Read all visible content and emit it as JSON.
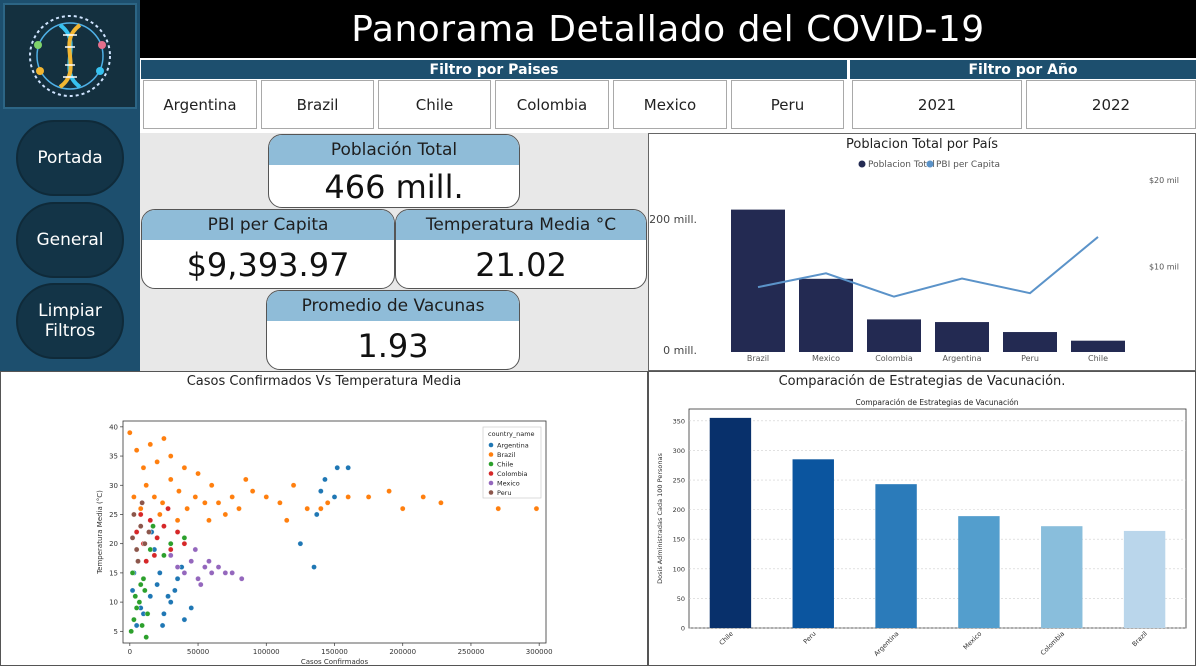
{
  "header": {
    "title": "Panorama Detallado del COVID-19"
  },
  "sidebar": {
    "buttons": [
      "Portada",
      "General",
      "Limpiar Filtros"
    ]
  },
  "filters": {
    "countries_label": "Filtro por Paises",
    "countries": [
      "Argentina",
      "Brazil",
      "Chile",
      "Colombia",
      "Mexico",
      "Peru"
    ],
    "years_label": "Filtro por Año",
    "years": [
      "2021",
      "2022"
    ]
  },
  "kpis": {
    "poblacion": {
      "label": "Población Total",
      "value": "466 mill."
    },
    "pbi": {
      "label": "PBI per Capita",
      "value": "$9,393.97"
    },
    "temp": {
      "label": "Temperatura Media °C",
      "value": "21.02"
    },
    "vacunas": {
      "label": "Promedio de Vacunas",
      "value": "1.93"
    }
  },
  "colors": {
    "navy": "#1d4f6e",
    "bar": "#232a52",
    "line": "#5b93c9",
    "kpi_header": "#8fbcd8"
  },
  "chart_data": [
    {
      "type": "bar",
      "title": "Poblacion Total por País",
      "categories": [
        "Brazil",
        "Mexico",
        "Colombia",
        "Argentina",
        "Peru",
        "Chile"
      ],
      "series": [
        {
          "name": "Poblacion Total",
          "values": [
            214,
            110,
            49,
            45,
            30,
            17
          ]
        },
        {
          "name": "PBI per Capita",
          "values": [
            7.5,
            9.1,
            6.4,
            8.5,
            6.8,
            13.3
          ]
        }
      ],
      "left_ticks": [
        "200 mill.",
        "0 mill."
      ],
      "right_ticks": [
        "$20 mil",
        "$10 mil"
      ],
      "ylim_left": [
        0,
        260
      ],
      "ylim_right": [
        0,
        20
      ]
    },
    {
      "type": "scatter",
      "title": "Casos Confirmados Vs Temperatura Media",
      "xlabel": "Casos Confirmados",
      "ylabel": "Temperatura Media (°C)",
      "xlim": [
        -5000,
        305000
      ],
      "ylim": [
        3,
        41
      ],
      "x_ticks": [
        "0",
        "50000",
        "100000",
        "150000",
        "200000",
        "250000",
        "300000"
      ],
      "y_ticks": [
        "5",
        "10",
        "15",
        "20",
        "25",
        "30",
        "35",
        "40"
      ],
      "legend_title": "country_name",
      "legend": [
        {
          "name": "Argentina",
          "color": "#1f77b4"
        },
        {
          "name": "Brazil",
          "color": "#ff7f0e"
        },
        {
          "name": "Chile",
          "color": "#2ca02c"
        },
        {
          "name": "Colombia",
          "color": "#d62728"
        },
        {
          "name": "Mexico",
          "color": "#9467bd"
        },
        {
          "name": "Peru",
          "color": "#8c564b"
        }
      ],
      "series": [
        {
          "name": "Argentina",
          "points": [
            [
              2000,
              12
            ],
            [
              8000,
              9
            ],
            [
              15000,
              11
            ],
            [
              20000,
              13
            ],
            [
              25000,
              8
            ],
            [
              30000,
              10
            ],
            [
              35000,
              14
            ],
            [
              40000,
              7
            ],
            [
              12000,
              17
            ],
            [
              18000,
              19
            ],
            [
              5000,
              6
            ],
            [
              22000,
              15
            ],
            [
              28000,
              11
            ],
            [
              45000,
              9
            ],
            [
              10000,
              8
            ],
            [
              33000,
              12
            ],
            [
              3000,
              15
            ],
            [
              16000,
              22
            ],
            [
              24000,
              6
            ],
            [
              38000,
              16
            ],
            [
              125000,
              20
            ],
            [
              135000,
              16
            ],
            [
              140000,
              29
            ],
            [
              143000,
              31
            ],
            [
              150000,
              28
            ],
            [
              152000,
              33
            ],
            [
              160000,
              33
            ],
            [
              137000,
              25
            ]
          ]
        },
        {
          "name": "Brazil",
          "points": [
            [
              0,
              39
            ],
            [
              5000,
              36
            ],
            [
              10000,
              33
            ],
            [
              15000,
              37
            ],
            [
              20000,
              34
            ],
            [
              25000,
              38
            ],
            [
              30000,
              35
            ],
            [
              12000,
              30
            ],
            [
              18000,
              28
            ],
            [
              24000,
              27
            ],
            [
              30000,
              31
            ],
            [
              36000,
              29
            ],
            [
              42000,
              26
            ],
            [
              48000,
              28
            ],
            [
              55000,
              27
            ],
            [
              60000,
              30
            ],
            [
              65000,
              27
            ],
            [
              70000,
              25
            ],
            [
              75000,
              28
            ],
            [
              80000,
              26
            ],
            [
              90000,
              29
            ],
            [
              100000,
              28
            ],
            [
              110000,
              27
            ],
            [
              120000,
              30
            ],
            [
              130000,
              26
            ],
            [
              145000,
              27
            ],
            [
              160000,
              28
            ],
            [
              175000,
              28
            ],
            [
              190000,
              29
            ],
            [
              200000,
              26
            ],
            [
              215000,
              28
            ],
            [
              228000,
              27
            ],
            [
              270000,
              26
            ],
            [
              298000,
              26
            ],
            [
              3000,
              28
            ],
            [
              8000,
              26
            ],
            [
              40000,
              33
            ],
            [
              50000,
              32
            ],
            [
              22000,
              25
            ],
            [
              35000,
              24
            ],
            [
              58000,
              24
            ],
            [
              85000,
              31
            ],
            [
              115000,
              24
            ],
            [
              140000,
              26
            ]
          ]
        },
        {
          "name": "Chile",
          "points": [
            [
              1000,
              5
            ],
            [
              3000,
              7
            ],
            [
              5000,
              9
            ],
            [
              7000,
              10
            ],
            [
              9000,
              6
            ],
            [
              11000,
              12
            ],
            [
              2000,
              15
            ],
            [
              6000,
              17
            ],
            [
              10000,
              14
            ],
            [
              13000,
              8
            ],
            [
              4000,
              11
            ],
            [
              8000,
              13
            ],
            [
              15000,
              19
            ],
            [
              20000,
              21
            ],
            [
              25000,
              18
            ],
            [
              30000,
              20
            ],
            [
              35000,
              22
            ],
            [
              40000,
              21
            ],
            [
              12000,
              4
            ],
            [
              17000,
              23
            ]
          ]
        },
        {
          "name": "Colombia",
          "points": [
            [
              5000,
              22
            ],
            [
              10000,
              20
            ],
            [
              15000,
              24
            ],
            [
              20000,
              21
            ],
            [
              25000,
              23
            ],
            [
              30000,
              19
            ],
            [
              35000,
              22
            ],
            [
              40000,
              20
            ],
            [
              8000,
              25
            ],
            [
              18000,
              18
            ],
            [
              28000,
              26
            ],
            [
              12000,
              17
            ]
          ]
        },
        {
          "name": "Mexico",
          "points": [
            [
              30000,
              18
            ],
            [
              35000,
              16
            ],
            [
              40000,
              15
            ],
            [
              45000,
              17
            ],
            [
              50000,
              14
            ],
            [
              55000,
              16
            ],
            [
              60000,
              15
            ],
            [
              65000,
              16
            ],
            [
              70000,
              15
            ],
            [
              75000,
              15
            ],
            [
              82000,
              14
            ],
            [
              48000,
              19
            ],
            [
              52000,
              13
            ],
            [
              58000,
              17
            ]
          ]
        },
        {
          "name": "Peru",
          "points": [
            [
              2000,
              21
            ],
            [
              5000,
              19
            ],
            [
              8000,
              23
            ],
            [
              11000,
              20
            ],
            [
              14000,
              22
            ],
            [
              3000,
              25
            ],
            [
              6000,
              17
            ],
            [
              9000,
              27
            ]
          ]
        }
      ]
    },
    {
      "type": "bar",
      "title": "Comparación de Estrategias de Vacunación.",
      "subtitle": "Comparación de Estrategias de Vacunación",
      "ylabel": "Dosis Administradas Cada 100 Personas",
      "categories": [
        "Chile",
        "Peru",
        "Argentina",
        "Mexico",
        "Colombia",
        "Brazil"
      ],
      "values": [
        355,
        285,
        243,
        189,
        172,
        164
      ],
      "colors": [
        "#08306b",
        "#0b559f",
        "#2b7bba",
        "#539ecd",
        "#89bedc",
        "#bad6eb"
      ],
      "ylim": [
        0,
        370
      ],
      "y_ticks": [
        0,
        50,
        100,
        150,
        200,
        250,
        300,
        350
      ]
    }
  ]
}
